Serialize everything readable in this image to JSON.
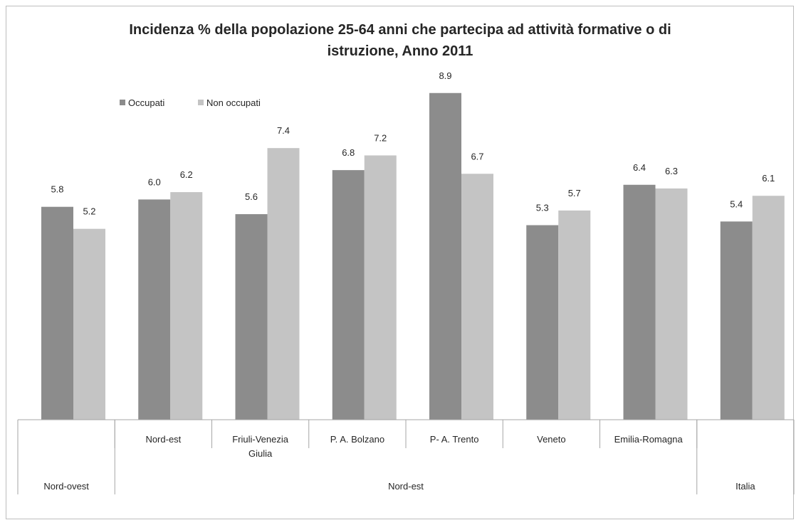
{
  "chart_data": {
    "type": "bar",
    "title": "Incidenza % della popolazione 25-64 anni che partecipa ad attività formative o di istruzione, Anno 2011",
    "title_lines": [
      "Incidenza % della popolazione 25-64 anni che partecipa ad attività formative o di",
      "istruzione, Anno 2011"
    ],
    "categories": [
      [
        "Nord-ovest"
      ],
      [
        "Nord-est"
      ],
      [
        "Friuli-Venezia",
        "Giulia"
      ],
      [
        "P. A. Bolzano"
      ],
      [
        "P- A. Trento"
      ],
      [
        "Veneto"
      ],
      [
        "Emilia-Romagna"
      ],
      [
        "Italia"
      ]
    ],
    "groups": [
      {
        "label": "Nord-ovest",
        "span": 1
      },
      {
        "label": "Nord-est",
        "span": 6
      },
      {
        "label": "Italia",
        "span": 1
      }
    ],
    "series": [
      {
        "name": "Occupati",
        "color": "#8c8c8c",
        "values": [
          5.8,
          6.0,
          5.6,
          6.8,
          8.9,
          5.3,
          6.4,
          5.4
        ]
      },
      {
        "name": "Non occupati",
        "color": "#c4c4c4",
        "values": [
          5.2,
          6.2,
          7.4,
          7.2,
          6.7,
          5.7,
          6.3,
          6.1
        ]
      }
    ],
    "ylim": [
      0,
      9
    ],
    "legend": "top-left",
    "grid": false,
    "data_labels": true
  }
}
